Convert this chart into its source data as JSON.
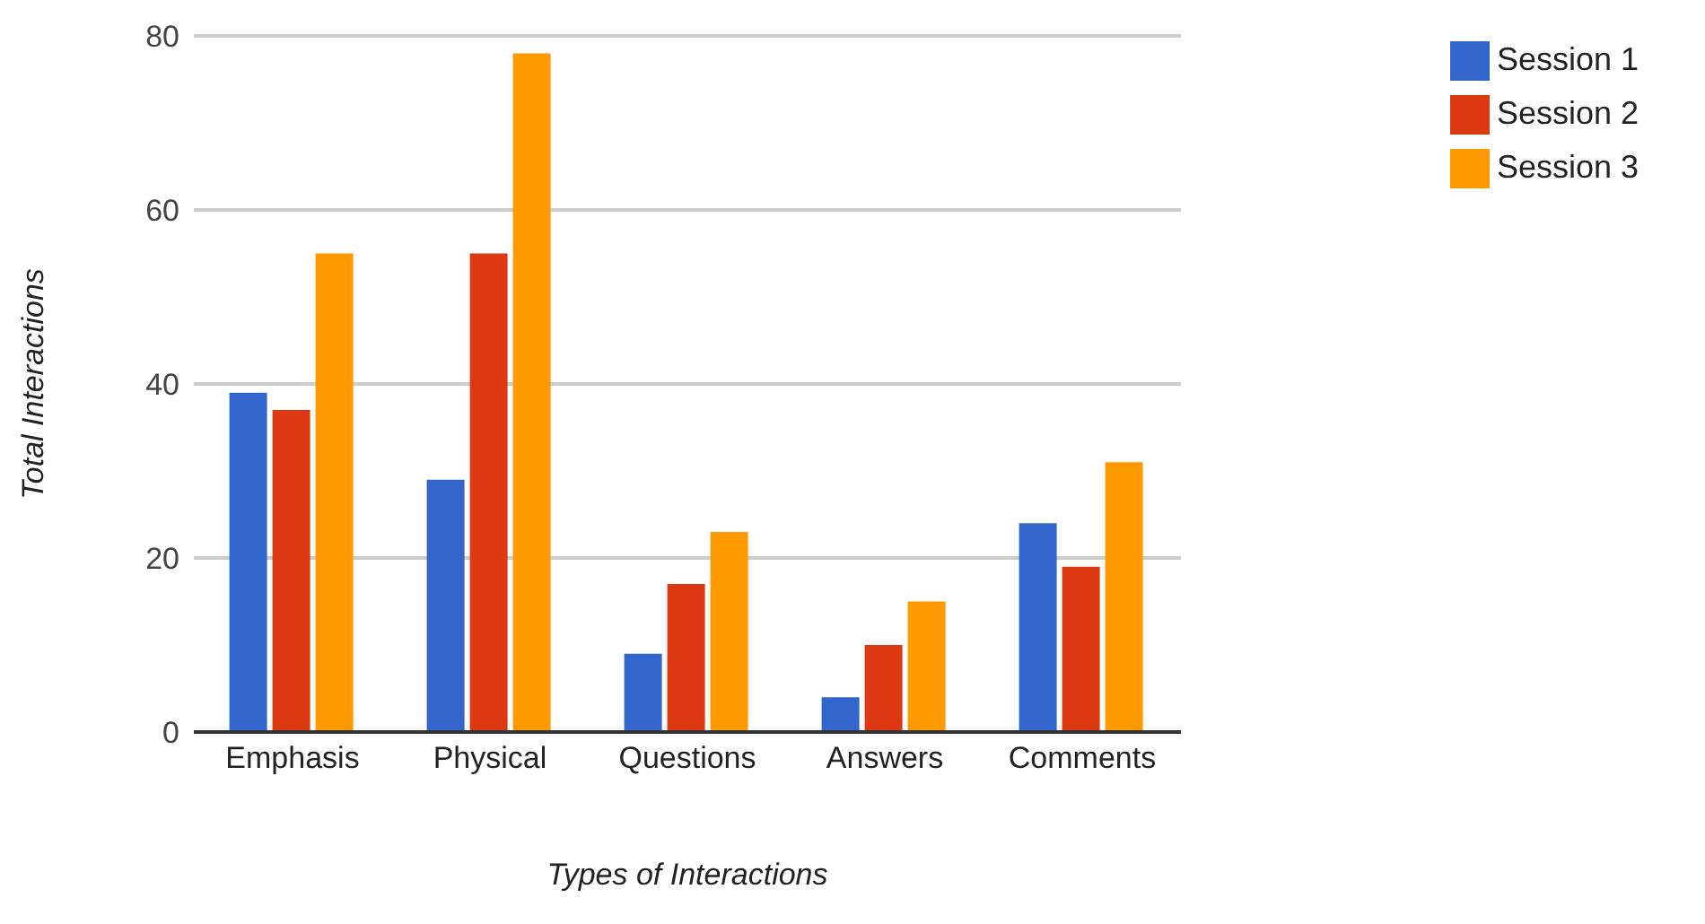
{
  "chart_data": {
    "type": "bar",
    "xlabel": "Types of Interactions",
    "ylabel": "Total Interactions",
    "categories": [
      "Emphasis",
      "Physical",
      "Questions",
      "Answers",
      "Comments"
    ],
    "series": [
      {
        "name": "Session 1",
        "color": "#3366cc",
        "values": [
          39,
          29,
          9,
          4,
          24
        ]
      },
      {
        "name": "Session 2",
        "color": "#dc3912",
        "values": [
          37,
          55,
          17,
          10,
          19
        ]
      },
      {
        "name": "Session 3",
        "color": "#ff9900",
        "values": [
          55,
          78,
          23,
          15,
          31
        ]
      }
    ],
    "ylim": [
      0,
      80
    ],
    "yticks": [
      0,
      20,
      40,
      60,
      80
    ],
    "grid": "y",
    "legend": "top right"
  }
}
